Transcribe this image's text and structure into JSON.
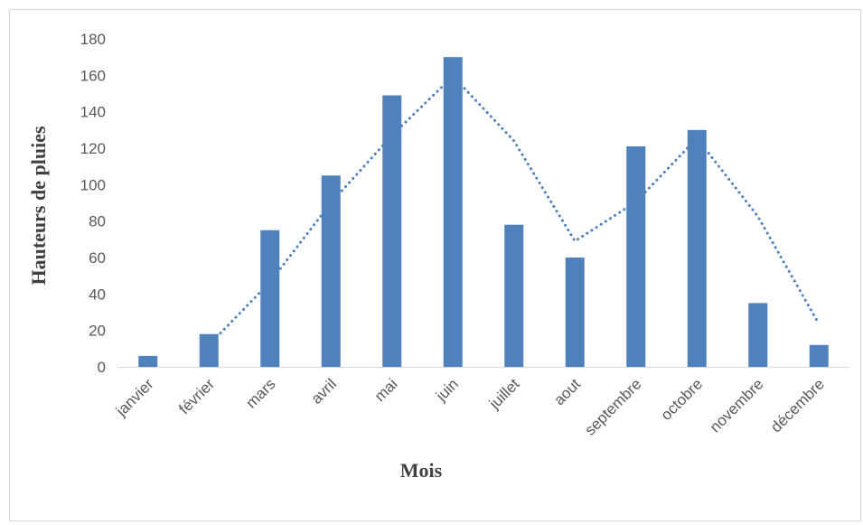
{
  "chart_data": {
    "type": "bar",
    "title": "",
    "xlabel": "Mois",
    "ylabel": "Hauteurs de pluies",
    "categories": [
      "janvier",
      "février",
      "mars",
      "avril",
      "mai",
      "juin",
      "juillet",
      "aout",
      "septembre",
      "octobre",
      "novembre",
      "décembre"
    ],
    "series": [
      {
        "values": [
          6,
          18,
          75,
          105,
          149,
          170,
          78,
          60,
          121,
          130,
          35,
          12
        ],
        "color": "#4F81BD"
      }
    ],
    "trendline": {
      "type": "moving-average",
      "period": 2,
      "style": "dotted",
      "color": "#4F81BD",
      "values": [
        null,
        12,
        46.5,
        90,
        127,
        159.5,
        124,
        69,
        90.5,
        125.5,
        82.5,
        23.5
      ]
    },
    "ylim": [
      0,
      180
    ],
    "yticks": [
      0,
      20,
      40,
      60,
      80,
      100,
      120,
      140,
      160,
      180
    ],
    "grid": false,
    "legend": "none"
  }
}
